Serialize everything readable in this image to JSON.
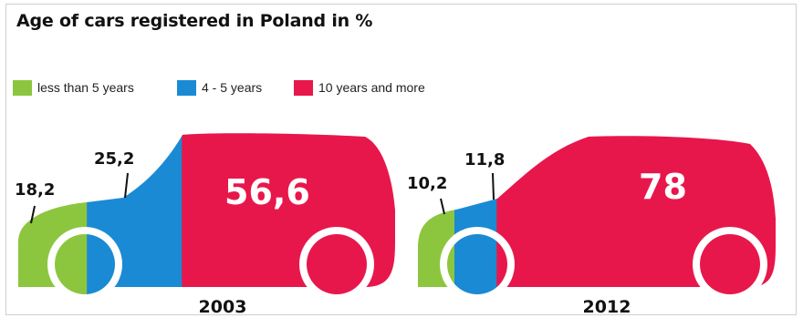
{
  "chart_data": {
    "type": "bar",
    "title": "Age of cars registered in Poland in %",
    "categories": [
      "2003",
      "2012"
    ],
    "series": [
      {
        "name": "less than 5 years",
        "color": "#8cc63f",
        "values": [
          18.2,
          10.2
        ],
        "labels": [
          "18,2",
          "10,2"
        ]
      },
      {
        "name": "4 - 5 years",
        "color": "#1a8ad4",
        "values": [
          25.2,
          11.8
        ],
        "labels": [
          "25,2",
          "11,8"
        ]
      },
      {
        "name": "10 years and more",
        "color": "#e8174b",
        "values": [
          56.6,
          78
        ],
        "labels": [
          "56,6",
          "78"
        ]
      }
    ],
    "stacked": true,
    "ylim": [
      0,
      100
    ],
    "legend": "top-left",
    "grid": false
  }
}
